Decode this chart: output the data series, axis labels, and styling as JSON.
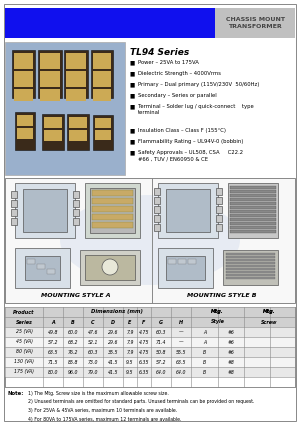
{
  "title_text": "CHASSIS MOUNT\nTRANSFORMER",
  "series_title": "TL94 Series",
  "bullets": [
    "Power – 25VA to 175VA",
    "Dielectric Strength – 4000Vrms",
    "Primary – Dual primary (115V/230V  50/60Hz)",
    "Secondary – Series or parallel",
    "Terminal – Solder lug / quick-connect    type\nterminal",
    "Insulation Class – Class F (155°C)",
    "Flammability Rating – UL94V-0 (bobbin)",
    "Safety Approvals – UL508, CSA     C22.2\n#66 , TUV / EN60950 & CE"
  ],
  "table_headers_row1": [
    "Product\nSeries",
    "Dimensions (mm)",
    "Mtg.\nStyle",
    "Mtg.\nScrew"
  ],
  "table_headers_row2": [
    "",
    "A",
    "B",
    "C",
    "D",
    "E",
    "F",
    "G",
    "H",
    "",
    ""
  ],
  "table_rows": [
    [
      "25 (VA)",
      "49.8",
      "60.0",
      "47.6",
      "29.6",
      "7.9",
      "4.75",
      "60.3",
      "—",
      "A",
      "#6"
    ],
    [
      "45 (VA)",
      "57.2",
      "68.2",
      "52.1",
      "29.6",
      "7.9",
      "4.75",
      "71.4",
      "—",
      "A",
      "#6"
    ],
    [
      "80 (VA)",
      "63.5",
      "76.2",
      "60.3",
      "35.5",
      "7.9",
      "4.75",
      "50.8",
      "55.5",
      "B",
      "#6"
    ],
    [
      "130 (VA)",
      "71.5",
      "85.8",
      "73.0",
      "41.5",
      "9.5",
      "6.35",
      "57.2",
      "63.5",
      "B",
      "#8"
    ],
    [
      "175 (VA)",
      "80.0",
      "96.0",
      "79.0",
      "41.5",
      "9.5",
      "6.35",
      "64.0",
      "64.0",
      "B",
      "#8"
    ]
  ],
  "note_label": "Note:",
  "note_lines": [
    "1) The Mtg. Screw size is the maximum allowable screw size.",
    "2) Unused terminals are omitted for standard parts. Unused terminals can be provided on request.",
    "3) For 25VA & 45VA series, maximum 10 terminals are available.",
    "4) For 80VA to 175VA series, maximum 12 terminals are available."
  ],
  "mounting_style_a": "MOUNTING STYLE A",
  "mounting_style_b": "MOUNTING STYLE B",
  "header_blue": "#1010EE",
  "header_gray": "#C0C0C0",
  "table_header_bg": "#D0D0D0",
  "table_alt_bg": "#E8E8E8",
  "bg_white": "#FFFFFF",
  "outer_border": "#888888"
}
